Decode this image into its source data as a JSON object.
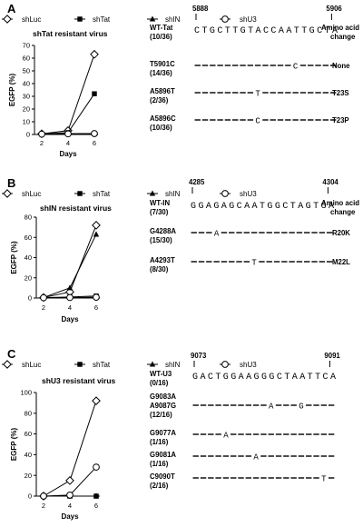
{
  "legend": [
    {
      "key": "luc",
      "label": "shLuc",
      "marker": "diamond-open"
    },
    {
      "key": "tat",
      "label": "shTat",
      "marker": "square-filled"
    },
    {
      "key": "in",
      "label": "shIN",
      "marker": "triangle-filled"
    },
    {
      "key": "u3",
      "label": "shU3",
      "marker": "circle-open"
    }
  ],
  "panels": [
    {
      "id": "A",
      "chart_title": "shTat resistant virus",
      "xlabel": "Days",
      "ylabel": "EGFP (%)",
      "chart_data": {
        "type": "line",
        "x": [
          2,
          4,
          6
        ],
        "yticks": [
          0,
          10,
          20,
          30,
          40,
          50,
          60,
          70
        ],
        "ylim": [
          0,
          70
        ],
        "series": [
          {
            "name": "shLuc",
            "values": [
              0.5,
              3,
              63
            ]
          },
          {
            "name": "shTat",
            "values": [
              0.3,
              1.5,
              32
            ]
          },
          {
            "name": "shIN",
            "values": [
              0.3,
              0.5,
              0.7
            ]
          },
          {
            "name": "shU3",
            "values": [
              0.3,
              0.5,
              0.7
            ]
          }
        ]
      },
      "seq": {
        "start": "5888",
        "end": "5906",
        "amino_header": "Amino acid",
        "amino_header2": "change",
        "ref_name": "WT-Tat",
        "ref_count": "(10/36)",
        "ref_seq": "CTGCTTGTACCAATTGCTA",
        "rows": [
          {
            "name": "T5901C",
            "count": "(14/36)",
            "aa": "None",
            "seq": "-------------C-----"
          },
          {
            "name": "A5896T",
            "count": "(2/36)",
            "aa": "T23S",
            "seq": "--------T----------"
          },
          {
            "name": "A5896C",
            "count": "(10/36)",
            "aa": "T23P",
            "seq": "--------C----------"
          }
        ]
      }
    },
    {
      "id": "B",
      "chart_title": "shIN resistant virus",
      "xlabel": "Days",
      "ylabel": "EGFP (%)",
      "chart_data": {
        "type": "line",
        "x": [
          2,
          4,
          6
        ],
        "yticks": [
          0,
          20,
          40,
          60,
          80
        ],
        "ylim": [
          0,
          80
        ],
        "series": [
          {
            "name": "shLuc",
            "values": [
              0.5,
              6,
              72
            ]
          },
          {
            "name": "shTat",
            "values": [
              0.3,
              1,
              2
            ]
          },
          {
            "name": "shIN",
            "values": [
              0.5,
              10,
              63
            ]
          },
          {
            "name": "shU3",
            "values": [
              0.3,
              0.5,
              0.8
            ]
          }
        ]
      },
      "seq": {
        "start": "4285",
        "end": "4304",
        "amino_header": "Amino acid",
        "amino_header2": "change",
        "ref_name": "WT-IN",
        "ref_count": "(7/30)",
        "ref_seq": "GGAGAGCAATGGCTAGTGA",
        "rows": [
          {
            "name": "G4288A",
            "count": "(15/30)",
            "aa": "R20K",
            "seq": "---A---------------"
          },
          {
            "name": "A4293T",
            "count": "(8/30)",
            "aa": "M22L",
            "seq": "--------T----------"
          }
        ]
      }
    },
    {
      "id": "C",
      "chart_title": "shU3 resistant virus",
      "xlabel": "Days",
      "ylabel": "EGFP (%)",
      "chart_data": {
        "type": "line",
        "x": [
          2,
          4,
          6
        ],
        "yticks": [
          0,
          20,
          40,
          60,
          80,
          100
        ],
        "ylim": [
          0,
          100
        ],
        "series": [
          {
            "name": "shLuc",
            "values": [
              0,
              15,
              92
            ]
          },
          {
            "name": "shTat",
            "values": [
              0,
              0,
              0
            ]
          },
          {
            "name": "shIN",
            "values": [
              0,
              0,
              0
            ]
          },
          {
            "name": "shU3",
            "values": [
              0,
              1,
              28
            ]
          }
        ]
      },
      "seq": {
        "start": "9073",
        "end": "9091",
        "amino_header": "",
        "amino_header2": "",
        "ref_name": "WT-U3",
        "ref_count": "(0/16)",
        "ref_seq": "GACTGGAAGGGCTAATTCA",
        "rows": [
          {
            "name": "G9083A",
            "name2": "A9087G",
            "count": "(12/16)",
            "aa": "",
            "seq": "----------A---G----"
          },
          {
            "name": "G9077A",
            "count": "(1/16)",
            "aa": "",
            "seq": "----A--------------"
          },
          {
            "name": "G9081A",
            "count": "(1/16)",
            "aa": "",
            "seq": "--------A----------"
          },
          {
            "name": "C9090T",
            "count": "(2/16)",
            "aa": "",
            "seq": "-----------------T-"
          }
        ]
      }
    }
  ]
}
